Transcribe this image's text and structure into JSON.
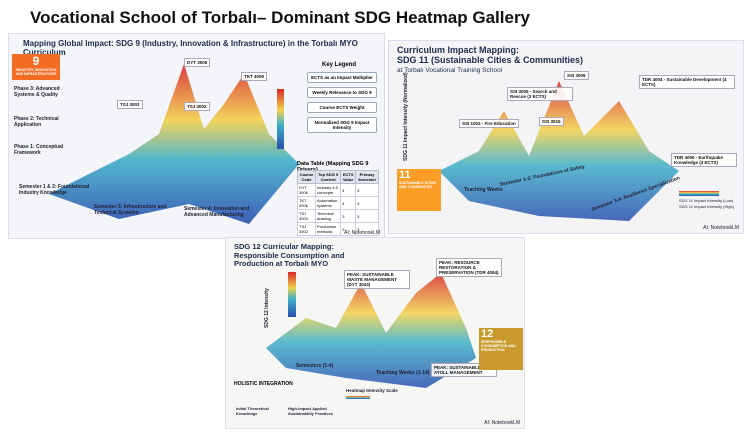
{
  "header": {
    "title": "Vocational School of Torbalı– Dominant SDG Heatmap Gallery"
  },
  "panels": [
    {
      "title": "Mapping Global Impact: SDG 9 (Industry, Innovation & Infrastructure) in the Torbalı MYO Curriculum",
      "badge": "9",
      "badge_text": "INDUSTRY, INNOVATION AND INFRASTRUCTURE",
      "peaks": [
        "DYT 3006",
        "TKT 4006",
        "TSJ 3003",
        "TSJ 3002"
      ],
      "phases": [
        "Phase 3: Advanced Systems & Quality",
        "Phase 2: Technical Application",
        "Phase 1: Conceptual Framework"
      ],
      "axes": [
        "Semester 1 & 2: Foundational Industry Knowledge",
        "Semester 3: Infrastructure and Technical Systems",
        "Semester 4: Innovation and Advanced Manufacturing"
      ],
      "legend_title": "Key Legend",
      "legend_items": [
        "ECTS as an Impact Multiplier",
        "Weekly Relevance to SDG 9",
        "Course ECTS Weight",
        "Normalized SDG 9 Impact Intensity"
      ],
      "table_title": "Data Table (Mapping SDG 9 Drivers)",
      "table_header": [
        "Course Code",
        "Top SDG 9 Content",
        "ECTS Value",
        "Primary Semester"
      ],
      "table_rows": [
        [
          "DYT 3006",
          "Industry 4.0 concepts",
          "4",
          "3"
        ],
        [
          "TKT 4006",
          "Automation systems",
          "4",
          "4"
        ],
        [
          "TSJ 3003",
          "Technical drawing",
          "3",
          "3"
        ],
        [
          "TSJ 3002",
          "Production methods",
          "3",
          "3"
        ]
      ],
      "credit": "AI: NotebookLM"
    },
    {
      "title": "Curriculum Impact Mapping:",
      "title2": "SDG 11 (Sustainable Cities & Communities)",
      "subtitle": "at Torbalı Vocational Training School",
      "notes": [
        "SSI 3009",
        "TDR 4004 - Sustainable Development (4 ECTS)",
        "SSI 3005 - Search and Rescue (3 ECTS)",
        "SSI 1003 - Fire Education",
        "SSI 3015",
        "TDR 4006 - Earthquake Knowledge (3 ECTS)"
      ],
      "axes": [
        "Semester 1-2: Foundations of Safety",
        "Semester 3-4: Resilience Specialization",
        "Teaching Weeks",
        "SDG 11 Impact Intensity (Normalized)"
      ],
      "badge": "11",
      "badge_text": "SUSTAINABLE CITIES AND COMMUNITIES",
      "scale": [
        "SDG 11 Impact Intensity (Low)",
        "SDG 11 Impact Intensity (High)"
      ],
      "credit": "AI: NotebookLM"
    },
    {
      "title": "SDG 12 Curricular Mapping:",
      "title2": "Responsible Consumption and Production at Torbalı MYO",
      "notes": [
        "PEAK: SUSTAINABLE WASTE MANAGEMENT (DYT 3043)",
        "PEAK: RESOURCE RESTORATION & PRESERVATION (TDR 4054)",
        "PEAK: SUSTAINABLE ATOLL MANAGEMENT"
      ],
      "axes": [
        "SDG 12 Intensity",
        "Semesters (1-4)",
        "Teaching Weeks (1-14)"
      ],
      "badge": "12",
      "badge_text": "RESPONSIBLE CONSUMPTION AND PRODUCTION",
      "holistic": "HOLISTIC INTEGRATION",
      "holistic_items": [
        "Initial Theoretical Knowledge",
        "High-Impact Applied Sustainability Practices"
      ],
      "scale": "Heatmap Intensity Scale",
      "credit": "AI: NotebookLM"
    }
  ]
}
